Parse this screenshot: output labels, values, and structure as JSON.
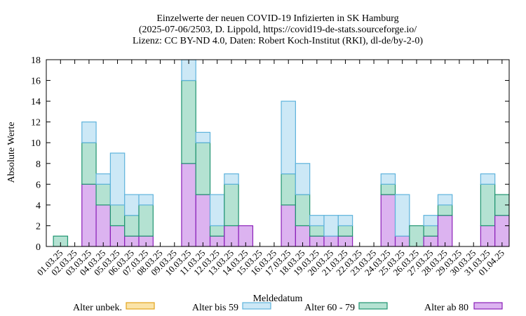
{
  "chart_data": {
    "type": "bar",
    "stacked": true,
    "title_lines": [
      "Einzelwerte der neuen COVID-19 Infizierten in SK Hamburg",
      "(2025-07-06/2503, D. Lippold, https://covid19-de-stats.sourceforge.io/",
      "Lizenz: CC BY-ND 4.0, Daten: Robert Koch-Institut (RKI), dl-de/by-2-0)"
    ],
    "xlabel": "Meldedatum",
    "ylabel": "Absolute Werte",
    "ylim": [
      0,
      18
    ],
    "yticks": [
      0,
      2,
      4,
      6,
      8,
      10,
      12,
      14,
      16,
      18
    ],
    "categories": [
      "01.03.25",
      "02.03.25",
      "03.03.25",
      "04.03.25",
      "05.03.25",
      "06.03.25",
      "07.03.25",
      "08.03.25",
      "09.03.25",
      "10.03.25",
      "11.03.25",
      "12.03.25",
      "13.03.25",
      "14.03.25",
      "15.03.25",
      "16.03.25",
      "17.03.25",
      "18.03.25",
      "19.03.25",
      "20.03.25",
      "21.03.25",
      "22.03.25",
      "23.03.25",
      "24.03.25",
      "25.03.25",
      "26.03.25",
      "27.03.25",
      "28.03.25",
      "29.03.25",
      "30.03.25",
      "31.03.25",
      "01.04.25"
    ],
    "series": [
      {
        "name": "Alter ab 80",
        "fill": "#dcb3f0",
        "stroke": "#8a1fb8",
        "values": [
          0,
          0,
          6,
          4,
          2,
          1,
          1,
          0,
          0,
          8,
          5,
          1,
          2,
          2,
          0,
          0,
          4,
          2,
          1,
          1,
          1,
          0,
          0,
          5,
          1,
          0,
          1,
          3,
          0,
          0,
          2,
          3
        ]
      },
      {
        "name": "Alter 60 - 79",
        "fill": "#b4e2d2",
        "stroke": "#1f9470",
        "values": [
          1,
          0,
          4,
          2,
          2,
          2,
          3,
          0,
          0,
          8,
          5,
          1,
          4,
          0,
          0,
          0,
          3,
          3,
          1,
          0,
          1,
          0,
          0,
          1,
          0,
          2,
          1,
          1,
          0,
          0,
          4,
          2
        ]
      },
      {
        "name": "Alter bis 59",
        "fill": "#cce8f6",
        "stroke": "#5fb3dc",
        "values": [
          0,
          0,
          2,
          1,
          5,
          2,
          1,
          0,
          0,
          2,
          1,
          3,
          1,
          0,
          0,
          0,
          7,
          3,
          1,
          2,
          1,
          0,
          0,
          1,
          4,
          0,
          1,
          1,
          0,
          0,
          1,
          0
        ]
      },
      {
        "name": "Alter unbek.",
        "fill": "#fae3a8",
        "stroke": "#e2a41c",
        "values": [
          0,
          0,
          0,
          0,
          0,
          0,
          0,
          0,
          0,
          0,
          0,
          0,
          0,
          0,
          0,
          0,
          0,
          0,
          0,
          0,
          0,
          0,
          0,
          0,
          0,
          0,
          0,
          0,
          0,
          0,
          0,
          0
        ]
      }
    ],
    "legend": [
      {
        "label": "Alter unbek.",
        "fill": "#fae3a8",
        "stroke": "#e2a41c"
      },
      {
        "label": "Alter bis 59",
        "fill": "#cce8f6",
        "stroke": "#5fb3dc"
      },
      {
        "label": "Alter 60 - 79",
        "fill": "#b4e2d2",
        "stroke": "#1f9470"
      },
      {
        "label": "Alter ab 80",
        "fill": "#dcb3f0",
        "stroke": "#8a1fb8"
      }
    ],
    "legend_position": "bottom"
  }
}
